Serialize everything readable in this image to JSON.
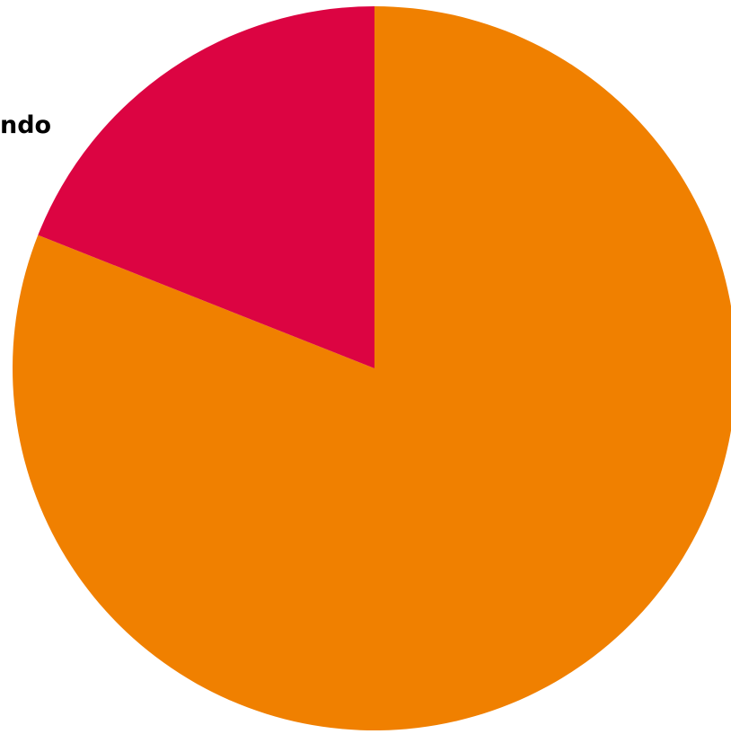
{
  "chart_data": {
    "type": "pie",
    "title": "",
    "slices": [
      {
        "label": "",
        "value": 81,
        "color": "#F08000"
      },
      {
        "label": "ndo",
        "value": 19,
        "color": "#DC0442"
      }
    ],
    "start": "top",
    "direction": "clockwise"
  }
}
